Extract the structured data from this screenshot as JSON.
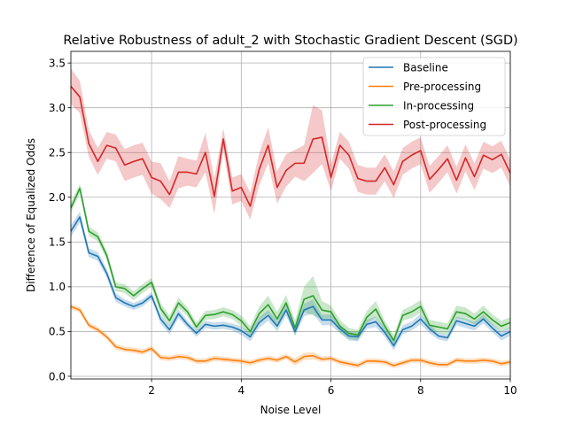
{
  "chart_data": {
    "type": "line",
    "title": "Relative Robustness of adult_2 with Stochastic Gradient Descent (SGD)",
    "xlabel": "Noise Level",
    "ylabel": "Difference of Equalized Odds",
    "xlim": [
      0.2,
      10
    ],
    "ylim": [
      -0.03,
      3.63
    ],
    "grid": true,
    "legend_position": "upper right",
    "x_ticks": [
      "2",
      "4",
      "6",
      "8",
      "10"
    ],
    "y_ticks": [
      "0.0",
      "0.5",
      "1.0",
      "1.5",
      "2.0",
      "2.5",
      "3.0",
      "3.5"
    ],
    "x": [
      0.2,
      0.4,
      0.6,
      0.8,
      1.0,
      1.2,
      1.4,
      1.6,
      1.8,
      2.0,
      2.2,
      2.4,
      2.6,
      2.8,
      3.0,
      3.2,
      3.4,
      3.6,
      3.8,
      4.0,
      4.2,
      4.4,
      4.6,
      4.8,
      5.0,
      5.2,
      5.4,
      5.6,
      5.8,
      6.0,
      6.2,
      6.4,
      6.6,
      6.8,
      7.0,
      7.2,
      7.4,
      7.6,
      7.8,
      8.0,
      8.2,
      8.4,
      8.6,
      8.8,
      9.0,
      9.2,
      9.4,
      9.6,
      9.8,
      10.0
    ],
    "series": [
      {
        "name": "Baseline",
        "color": "#1f77b4",
        "values": [
          1.62,
          1.78,
          1.38,
          1.34,
          1.15,
          0.88,
          0.82,
          0.78,
          0.82,
          0.9,
          0.64,
          0.52,
          0.7,
          0.58,
          0.48,
          0.58,
          0.56,
          0.57,
          0.55,
          0.51,
          0.44,
          0.6,
          0.68,
          0.56,
          0.74,
          0.5,
          0.74,
          0.78,
          0.63,
          0.63,
          0.53,
          0.45,
          0.44,
          0.58,
          0.61,
          0.49,
          0.34,
          0.52,
          0.56,
          0.64,
          0.53,
          0.45,
          0.43,
          0.62,
          0.59,
          0.56,
          0.64,
          0.54,
          0.45,
          0.5
        ],
        "band": [
          0.07,
          0.06,
          0.05,
          0.05,
          0.05,
          0.05,
          0.04,
          0.04,
          0.04,
          0.04,
          0.05,
          0.05,
          0.05,
          0.04,
          0.04,
          0.04,
          0.04,
          0.04,
          0.04,
          0.05,
          0.05,
          0.06,
          0.06,
          0.06,
          0.06,
          0.05,
          0.07,
          0.08,
          0.06,
          0.06,
          0.05,
          0.05,
          0.05,
          0.05,
          0.06,
          0.05,
          0.05,
          0.05,
          0.05,
          0.06,
          0.05,
          0.04,
          0.04,
          0.05,
          0.05,
          0.05,
          0.05,
          0.05,
          0.05,
          0.05
        ]
      },
      {
        "name": "Pre-processing",
        "color": "#ff7f0e",
        "values": [
          0.78,
          0.74,
          0.57,
          0.52,
          0.44,
          0.33,
          0.3,
          0.29,
          0.27,
          0.31,
          0.21,
          0.2,
          0.22,
          0.21,
          0.17,
          0.17,
          0.2,
          0.19,
          0.18,
          0.17,
          0.15,
          0.18,
          0.2,
          0.18,
          0.22,
          0.16,
          0.22,
          0.23,
          0.19,
          0.2,
          0.16,
          0.14,
          0.12,
          0.17,
          0.17,
          0.16,
          0.12,
          0.15,
          0.18,
          0.18,
          0.15,
          0.13,
          0.13,
          0.18,
          0.17,
          0.17,
          0.18,
          0.17,
          0.14,
          0.16
        ],
        "band": [
          0.03,
          0.03,
          0.03,
          0.03,
          0.03,
          0.03,
          0.03,
          0.03,
          0.03,
          0.03,
          0.03,
          0.03,
          0.03,
          0.03,
          0.03,
          0.03,
          0.03,
          0.03,
          0.03,
          0.03,
          0.03,
          0.03,
          0.03,
          0.03,
          0.03,
          0.04,
          0.04,
          0.04,
          0.03,
          0.03,
          0.03,
          0.03,
          0.03,
          0.03,
          0.03,
          0.03,
          0.03,
          0.03,
          0.03,
          0.03,
          0.03,
          0.03,
          0.03,
          0.03,
          0.03,
          0.03,
          0.03,
          0.03,
          0.03,
          0.03
        ]
      },
      {
        "name": "In-processing",
        "color": "#2ca02c",
        "values": [
          1.88,
          2.1,
          1.62,
          1.56,
          1.35,
          1.0,
          0.98,
          0.9,
          0.98,
          1.05,
          0.76,
          0.62,
          0.82,
          0.72,
          0.55,
          0.68,
          0.69,
          0.72,
          0.69,
          0.62,
          0.5,
          0.7,
          0.8,
          0.64,
          0.82,
          0.54,
          0.86,
          0.9,
          0.74,
          0.72,
          0.56,
          0.48,
          0.46,
          0.66,
          0.75,
          0.56,
          0.4,
          0.68,
          0.72,
          0.78,
          0.57,
          0.55,
          0.53,
          0.72,
          0.7,
          0.64,
          0.72,
          0.63,
          0.56,
          0.6
        ],
        "band": [
          0.06,
          0.05,
          0.05,
          0.05,
          0.05,
          0.05,
          0.05,
          0.05,
          0.05,
          0.05,
          0.06,
          0.06,
          0.06,
          0.05,
          0.05,
          0.05,
          0.05,
          0.05,
          0.05,
          0.06,
          0.06,
          0.08,
          0.1,
          0.08,
          0.09,
          0.08,
          0.14,
          0.22,
          0.1,
          0.07,
          0.07,
          0.06,
          0.06,
          0.07,
          0.09,
          0.06,
          0.06,
          0.06,
          0.07,
          0.07,
          0.06,
          0.06,
          0.06,
          0.07,
          0.07,
          0.06,
          0.07,
          0.06,
          0.06,
          0.06
        ]
      },
      {
        "name": "Post-processing",
        "color": "#d62728",
        "values": [
          3.24,
          3.12,
          2.6,
          2.4,
          2.58,
          2.55,
          2.36,
          2.4,
          2.43,
          2.22,
          2.18,
          2.03,
          2.28,
          2.28,
          2.26,
          2.5,
          2.01,
          2.65,
          2.07,
          2.11,
          1.9,
          2.31,
          2.58,
          2.11,
          2.3,
          2.38,
          2.38,
          2.65,
          2.67,
          2.22,
          2.58,
          2.47,
          2.21,
          2.18,
          2.18,
          2.33,
          2.14,
          2.4,
          2.47,
          2.52,
          2.2,
          2.31,
          2.43,
          2.19,
          2.44,
          2.23,
          2.47,
          2.42,
          2.48,
          2.27
        ],
        "band": [
          0.2,
          0.18,
          0.15,
          0.15,
          0.15,
          0.15,
          0.18,
          0.18,
          0.18,
          0.18,
          0.2,
          0.15,
          0.18,
          0.15,
          0.15,
          0.22,
          0.2,
          0.12,
          0.15,
          0.15,
          0.15,
          0.18,
          0.2,
          0.18,
          0.18,
          0.15,
          0.2,
          0.38,
          0.3,
          0.15,
          0.15,
          0.15,
          0.15,
          0.15,
          0.15,
          0.15,
          0.15,
          0.15,
          0.15,
          0.15,
          0.15,
          0.15,
          0.15,
          0.15,
          0.15,
          0.15,
          0.15,
          0.15,
          0.15,
          0.15
        ]
      }
    ]
  }
}
